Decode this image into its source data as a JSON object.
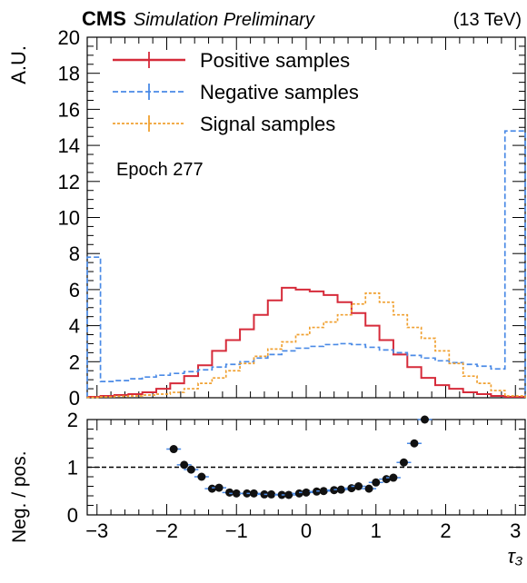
{
  "header": {
    "experiment": "CMS",
    "status": "Simulation Preliminary",
    "energy": "(13 TeV)"
  },
  "annotation": "Epoch 277",
  "colors": {
    "positive": "#d62b3a",
    "negative": "#4a8ae6",
    "signal": "#f0a030",
    "ratio": "#111111"
  },
  "chart_data": [
    {
      "type": "line",
      "step": true,
      "ylabel": "A.U.",
      "xlim": [
        -3.14,
        3.14
      ],
      "ylim": [
        0,
        20
      ],
      "yticks": [
        0,
        2,
        4,
        6,
        8,
        10,
        12,
        14,
        16,
        18,
        20
      ],
      "legend_position": "top-left",
      "bin_edges": [
        -3.14,
        -2.95,
        -2.75,
        -2.55,
        -2.35,
        -2.15,
        -1.95,
        -1.75,
        -1.55,
        -1.35,
        -1.15,
        -0.95,
        -0.75,
        -0.55,
        -0.35,
        -0.15,
        0.05,
        0.25,
        0.45,
        0.65,
        0.85,
        1.05,
        1.25,
        1.45,
        1.65,
        1.85,
        2.05,
        2.25,
        2.45,
        2.65,
        2.85,
        3.14
      ],
      "series": [
        {
          "name": "Positive samples",
          "key": "positive",
          "style": "solid",
          "values": [
            0.05,
            0.1,
            0.15,
            0.2,
            0.3,
            0.5,
            0.8,
            1.2,
            1.8,
            2.6,
            3.2,
            3.8,
            4.6,
            5.4,
            6.1,
            6.0,
            5.9,
            5.7,
            5.3,
            4.7,
            4.0,
            3.2,
            2.4,
            1.7,
            1.1,
            0.7,
            0.5,
            0.3,
            0.2,
            0.1,
            0.05
          ]
        },
        {
          "name": "Negative samples",
          "key": "negative",
          "style": "dashed",
          "values": [
            7.8,
            0.9,
            0.95,
            1.05,
            1.15,
            1.25,
            1.35,
            1.45,
            1.55,
            1.7,
            1.85,
            2.0,
            2.2,
            2.4,
            2.6,
            2.75,
            2.85,
            2.95,
            3.0,
            2.95,
            2.8,
            2.65,
            2.5,
            2.35,
            2.2,
            2.05,
            1.95,
            1.85,
            1.75,
            1.6,
            14.8
          ]
        },
        {
          "name": "Signal samples",
          "key": "signal",
          "style": "dotted",
          "values": [
            0.02,
            0.05,
            0.08,
            0.1,
            0.15,
            0.2,
            0.3,
            0.5,
            0.8,
            1.1,
            1.5,
            1.9,
            2.3,
            2.7,
            3.1,
            3.5,
            3.9,
            4.2,
            4.6,
            5.2,
            5.8,
            5.3,
            4.6,
            3.9,
            3.3,
            2.6,
            1.9,
            1.2,
            0.8,
            0.4,
            0.1
          ]
        }
      ]
    },
    {
      "type": "scatter",
      "ylabel": "Neg. / pos.",
      "xlabel": "τ₃",
      "xlim": [
        -3.14,
        3.14
      ],
      "ylim": [
        0,
        2
      ],
      "yticks": [
        0,
        1,
        2
      ],
      "xticks": [
        -3,
        -2,
        -1,
        0,
        1,
        2,
        3
      ],
      "reference_line": 1,
      "x": [
        -1.9,
        -1.75,
        -1.65,
        -1.5,
        -1.35,
        -1.25,
        -1.1,
        -1.0,
        -0.85,
        -0.75,
        -0.6,
        -0.5,
        -0.35,
        -0.25,
        -0.1,
        0.0,
        0.15,
        0.25,
        0.4,
        0.5,
        0.65,
        0.75,
        0.9,
        1.0,
        1.15,
        1.25,
        1.4,
        1.55,
        1.7
      ],
      "y": [
        1.38,
        1.05,
        0.95,
        0.8,
        0.55,
        0.57,
        0.47,
        0.45,
        0.45,
        0.45,
        0.43,
        0.43,
        0.42,
        0.42,
        0.45,
        0.47,
        0.49,
        0.5,
        0.52,
        0.53,
        0.56,
        0.6,
        0.55,
        0.68,
        0.75,
        0.78,
        1.1,
        1.5,
        2.0
      ]
    }
  ]
}
